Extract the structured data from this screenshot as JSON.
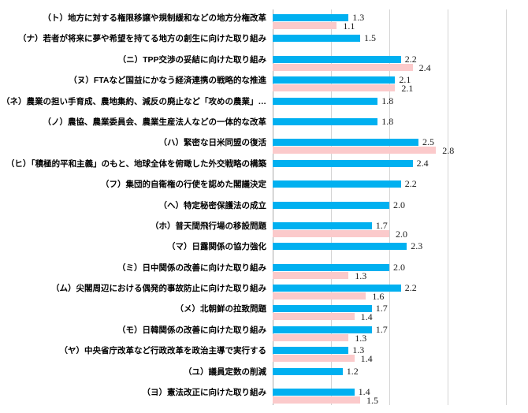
{
  "chart_data": {
    "type": "bar",
    "orientation": "horizontal",
    "title": "",
    "xlabel": "",
    "ylabel": "",
    "xlim": [
      0,
      4.4
    ],
    "gridline_interval": 1.0,
    "grid": true,
    "value_labels": true,
    "legend": "none",
    "categories": [
      "（ト）地方に対する権限移譲や規制緩和などの地方分権改革",
      "（ナ）若者が将来に夢や希望を持てる地方の創生に向けた取り組み",
      "（ニ）TPP交渉の妥結に向けた取り組み",
      "（ヌ）FTAなど国益にかなう経済連携の戦略的な推進",
      "（ネ）農業の担い手育成、農地集約、減反の廃止など「攻めの農業」…",
      "（ノ）農協、農業委員会、農業生産法人などの一体的な改革",
      "（ハ）緊密な日米同盟の復活",
      "（ヒ）「積極的平和主義」のもと、地球全体を俯瞰した外交戦略の構築",
      "（フ）集団的自衛権の行使を認めた閣議決定",
      "（ヘ）特定秘密保護法の成立",
      "（ホ）普天間飛行場の移設問題",
      "（マ）日露関係の協力強化",
      "（ミ）日中関係の改善に向けた取り組み",
      "（ム）尖閣周辺における偶発的事故防止に向けた取り組み",
      "（メ）北朝鮮の拉致問題",
      "（モ）日韓関係の改善に向けた取り組み",
      "（ヤ）中央省庁改革など行政改革を政治主導で実行する",
      "（ユ）議員定数の削減",
      "（ヨ）憲法改正に向けた取り組み"
    ],
    "series": [
      {
        "name": "series-blue",
        "color": "#00B0F0",
        "values": [
          1.3,
          1.5,
          2.2,
          2.1,
          1.8,
          1.8,
          2.5,
          2.4,
          2.2,
          2.0,
          1.7,
          2.3,
          2.0,
          2.2,
          1.7,
          1.7,
          1.3,
          1.2,
          1.4
        ]
      },
      {
        "name": "series-pink",
        "color": "#FBCACB",
        "values": [
          1.1,
          null,
          2.4,
          2.1,
          null,
          null,
          2.8,
          null,
          null,
          null,
          2.0,
          null,
          1.3,
          1.6,
          1.4,
          1.3,
          1.4,
          null,
          1.5
        ]
      }
    ],
    "colors": {
      "axis_line": "#ababab",
      "gridline": "#d4d4d4",
      "value_text": "#1a1a1a",
      "label_text": "#000000"
    }
  }
}
